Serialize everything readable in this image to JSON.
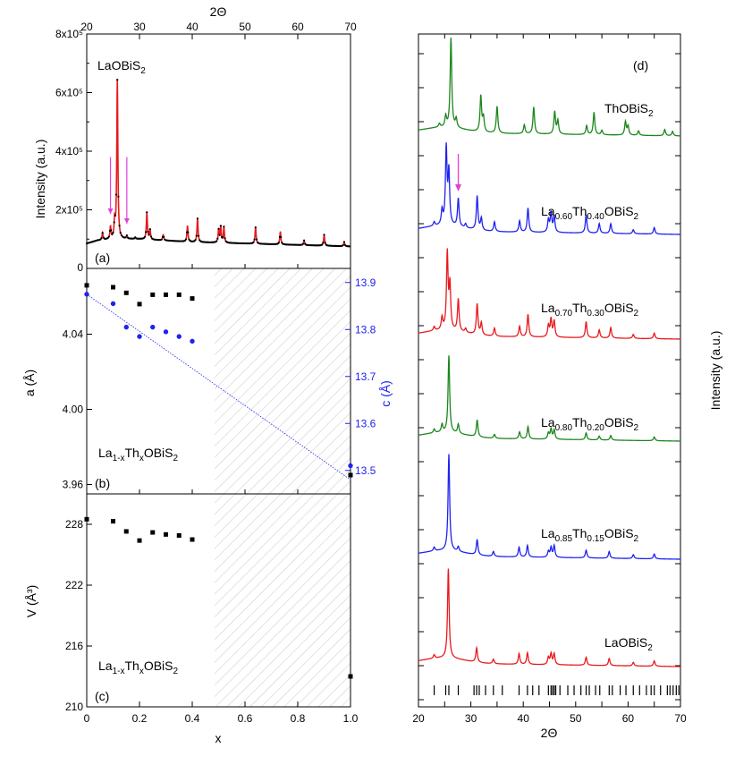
{
  "chart_data": [
    {
      "id": "a",
      "type": "line",
      "panel_label": "(a)",
      "title": "LaOBiS₂",
      "xlabel": "2Θ",
      "ylabel": "Intensity (a.u.)",
      "xlim": [
        20,
        70
      ],
      "ylim": [
        0,
        800000
      ],
      "x_ticks": [
        20,
        30,
        40,
        50,
        60,
        70
      ],
      "y_ticks": [
        {
          "value": 0,
          "label": "0"
        },
        {
          "value": 200000,
          "label": "2x10⁵"
        },
        {
          "value": 400000,
          "label": "4x10⁵"
        },
        {
          "value": 600000,
          "label": "6x10⁵"
        },
        {
          "value": 800000,
          "label": "8x10⁵"
        }
      ],
      "background": [
        [
          20,
          85000
        ],
        [
          22,
          95000
        ],
        [
          25,
          100000
        ],
        [
          30,
          100000
        ],
        [
          40,
          90000
        ],
        [
          50,
          85000
        ],
        [
          60,
          80000
        ],
        [
          70,
          75000
        ]
      ],
      "peaks": [
        {
          "x": 23.0,
          "y": 120000
        },
        {
          "x": 24.5,
          "y": 140000
        },
        {
          "x": 25.3,
          "y": 160000
        },
        {
          "x": 25.8,
          "y": 640000
        },
        {
          "x": 27.6,
          "y": 110000
        },
        {
          "x": 29.2,
          "y": 105000
        },
        {
          "x": 31.4,
          "y": 190000
        },
        {
          "x": 32.0,
          "y": 130000
        },
        {
          "x": 34.5,
          "y": 115000
        },
        {
          "x": 39.1,
          "y": 145000
        },
        {
          "x": 41.0,
          "y": 170000
        },
        {
          "x": 45.0,
          "y": 130000
        },
        {
          "x": 45.4,
          "y": 140000
        },
        {
          "x": 46.0,
          "y": 140000
        },
        {
          "x": 52.0,
          "y": 140000
        },
        {
          "x": 56.7,
          "y": 125000
        },
        {
          "x": 61.2,
          "y": 95000
        },
        {
          "x": 65.0,
          "y": 115000
        },
        {
          "x": 68.8,
          "y": 90000
        }
      ],
      "arrows_x": [
        24.5,
        27.6
      ],
      "colors": {
        "observed": "#000000",
        "calculated": "#e8191c",
        "arrow": "#e040d8"
      }
    },
    {
      "id": "b",
      "type": "scatter",
      "panel_label": "(b)",
      "annotation": "La1-xThxOBiS2",
      "ylabel": "a (Å)",
      "y2label": "c (Å)",
      "xlim": [
        0,
        1.0
      ],
      "ylim": [
        3.955,
        4.075
      ],
      "y2lim": [
        13.45,
        13.93
      ],
      "y_ticks": [
        3.96,
        4.0,
        4.04
      ],
      "y2_ticks": [
        13.5,
        13.6,
        13.7,
        13.8,
        13.9
      ],
      "a_series": {
        "x": [
          0,
          0.1,
          0.15,
          0.2,
          0.25,
          0.3,
          0.35,
          0.4,
          1.0
        ],
        "y": [
          4.066,
          4.065,
          4.062,
          4.056,
          4.061,
          4.061,
          4.061,
          4.059,
          3.965
        ]
      },
      "c_series": {
        "x": [
          0,
          0.1,
          0.15,
          0.2,
          0.25,
          0.3,
          0.35,
          0.4,
          1.0
        ],
        "y": [
          13.875,
          13.855,
          13.805,
          13.785,
          13.805,
          13.795,
          13.785,
          13.775,
          13.51
        ]
      },
      "fit_line": {
        "x": [
          0,
          1.0
        ],
        "y": [
          13.875,
          13.48
        ]
      },
      "hatch_from": 0.485,
      "colors": {
        "a": "#000000",
        "c": "#1f22ee"
      }
    },
    {
      "id": "c",
      "type": "scatter",
      "panel_label": "(c)",
      "annotation": "La1-xThxOBiS2",
      "xlabel": "x",
      "ylabel": "V (Å³)",
      "xlim": [
        0,
        1.0
      ],
      "ylim": [
        210,
        231
      ],
      "x_ticks": [
        {
          "value": 0,
          "label": "0"
        },
        {
          "value": 0.2,
          "label": "0.2"
        },
        {
          "value": 0.4,
          "label": "0.4"
        },
        {
          "value": 0.6,
          "label": "0.6"
        },
        {
          "value": 0.8,
          "label": "0.8"
        },
        {
          "value": 1.0,
          "label": "1.0"
        }
      ],
      "y_ticks": [
        210,
        216,
        222,
        228
      ],
      "series": {
        "x": [
          0,
          0.1,
          0.15,
          0.2,
          0.25,
          0.3,
          0.35,
          0.4,
          1.0
        ],
        "y": [
          228.5,
          228.3,
          227.3,
          226.4,
          227.2,
          227.0,
          226.9,
          226.5,
          213.0
        ]
      },
      "hatch_from": 0.485
    },
    {
      "id": "d",
      "type": "line",
      "panel_label": "(d)",
      "xlabel": "2Θ",
      "ylabel": "Intensity (a.u.)",
      "xlim": [
        20,
        70
      ],
      "x_ticks": [
        20,
        25,
        30,
        35,
        40,
        45,
        50,
        55,
        60,
        65,
        70
      ],
      "arrow_x": 27.6,
      "colors": {
        "arrow": "#e040d8"
      },
      "series": [
        {
          "name": "ThOBiS₂",
          "color": "#1c861c",
          "peaks": [
            [
              24.0,
              0.04
            ],
            [
              25.2,
              0.12
            ],
            [
              26.2,
              1.0
            ],
            [
              27.2,
              0.1
            ],
            [
              31.9,
              0.4
            ],
            [
              32.4,
              0.16
            ],
            [
              35.0,
              0.3
            ],
            [
              40.2,
              0.1
            ],
            [
              42.0,
              0.3
            ],
            [
              46.0,
              0.25
            ],
            [
              46.6,
              0.15
            ],
            [
              52.1,
              0.1
            ],
            [
              53.5,
              0.25
            ],
            [
              55.0,
              0.05
            ],
            [
              59.5,
              0.15
            ],
            [
              60.0,
              0.1
            ],
            [
              62.0,
              0.05
            ],
            [
              67.0,
              0.07
            ],
            [
              68.5,
              0.05
            ]
          ]
        },
        {
          "name": "La₀.₆₀Th₀.₄₀OBiS₂",
          "color": "#1f22ee",
          "peaks": [
            [
              23.0,
              0.05
            ],
            [
              24.5,
              0.18
            ],
            [
              25.3,
              0.95
            ],
            [
              25.8,
              0.65
            ],
            [
              27.6,
              0.35
            ],
            [
              29.0,
              0.05
            ],
            [
              31.2,
              0.42
            ],
            [
              32.0,
              0.15
            ],
            [
              34.5,
              0.12
            ],
            [
              39.3,
              0.14
            ],
            [
              40.9,
              0.3
            ],
            [
              44.8,
              0.15
            ],
            [
              45.3,
              0.24
            ],
            [
              45.9,
              0.2
            ],
            [
              52.0,
              0.23
            ],
            [
              54.5,
              0.12
            ],
            [
              56.7,
              0.12
            ],
            [
              61.0,
              0.05
            ],
            [
              65.0,
              0.08
            ]
          ]
        },
        {
          "name": "La₀.₇₀Th₀.₃₀OBiS₂",
          "color": "#e8191c",
          "peaks": [
            [
              23.0,
              0.05
            ],
            [
              24.5,
              0.15
            ],
            [
              25.5,
              0.95
            ],
            [
              26.0,
              0.55
            ],
            [
              27.6,
              0.4
            ],
            [
              29.0,
              0.05
            ],
            [
              31.2,
              0.38
            ],
            [
              32.0,
              0.15
            ],
            [
              34.5,
              0.1
            ],
            [
              39.3,
              0.13
            ],
            [
              40.9,
              0.28
            ],
            [
              44.8,
              0.14
            ],
            [
              45.3,
              0.22
            ],
            [
              45.9,
              0.2
            ],
            [
              52.0,
              0.2
            ],
            [
              54.5,
              0.1
            ],
            [
              56.7,
              0.13
            ],
            [
              61.0,
              0.05
            ],
            [
              65.0,
              0.07
            ]
          ]
        },
        {
          "name": "La₀.₈₀Th₀.₂₀OBiS₂",
          "color": "#1c861c",
          "peaks": [
            [
              23.0,
              0.05
            ],
            [
              24.5,
              0.1
            ],
            [
              25.8,
              1.0
            ],
            [
              27.6,
              0.12
            ],
            [
              31.2,
              0.22
            ],
            [
              34.5,
              0.05
            ],
            [
              39.3,
              0.09
            ],
            [
              40.9,
              0.16
            ],
            [
              44.8,
              0.08
            ],
            [
              45.3,
              0.13
            ],
            [
              45.9,
              0.12
            ],
            [
              52.0,
              0.09
            ],
            [
              54.5,
              0.05
            ],
            [
              56.7,
              0.06
            ],
            [
              65.0,
              0.05
            ]
          ]
        },
        {
          "name": "La₀.₈₅Th₀.₁₅OBiS₂",
          "color": "#1f22ee",
          "peaks": [
            [
              23.0,
              0.04
            ],
            [
              25.8,
              1.0
            ],
            [
              27.6,
              0.05
            ],
            [
              31.2,
              0.16
            ],
            [
              34.3,
              0.05
            ],
            [
              39.2,
              0.1
            ],
            [
              40.8,
              0.12
            ],
            [
              44.8,
              0.06
            ],
            [
              45.3,
              0.1
            ],
            [
              45.9,
              0.12
            ],
            [
              52.0,
              0.08
            ],
            [
              56.4,
              0.07
            ],
            [
              61.0,
              0.04
            ],
            [
              65.0,
              0.05
            ]
          ]
        },
        {
          "name": "LaOBiS₂",
          "color": "#e8191c",
          "peaks": [
            [
              23.0,
              0.04
            ],
            [
              25.7,
              1.0
            ],
            [
              31.1,
              0.16
            ],
            [
              34.3,
              0.05
            ],
            [
              39.2,
              0.12
            ],
            [
              40.8,
              0.13
            ],
            [
              44.8,
              0.08
            ],
            [
              45.3,
              0.12
            ],
            [
              45.9,
              0.12
            ],
            [
              52.0,
              0.09
            ],
            [
              56.4,
              0.08
            ],
            [
              61.0,
              0.04
            ],
            [
              65.0,
              0.06
            ]
          ]
        }
      ],
      "reflection_ticks": [
        23.0,
        25.2,
        25.8,
        27.6,
        30.6,
        31.1,
        31.6,
        32.8,
        34.3,
        36.0,
        39.2,
        40.8,
        41.8,
        43.0,
        44.8,
        45.3,
        45.6,
        45.9,
        46.2,
        47.0,
        48.5,
        49.7,
        51.0,
        52.0,
        52.6,
        53.8,
        54.6,
        56.4,
        57.0,
        58.5,
        59.6,
        61.0,
        62.2,
        63.5,
        64.4,
        65.0,
        66.2,
        67.5,
        68.0,
        68.6,
        69.2,
        69.7
      ]
    }
  ]
}
